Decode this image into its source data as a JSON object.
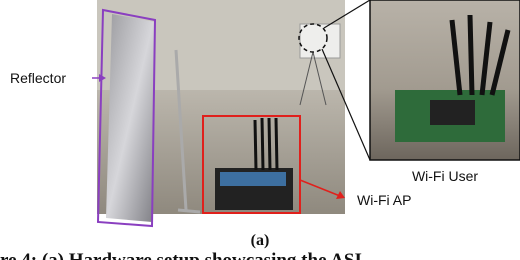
{
  "figure": {
    "labels": {
      "reflector": "Reflector",
      "wifi_user": "Wi-Fi User",
      "wifi_ap": "Wi-Fi AP"
    },
    "subfigure_label": "(a)",
    "caption": "re 4: (a) Hardware setup showcasing the ASI"
  }
}
